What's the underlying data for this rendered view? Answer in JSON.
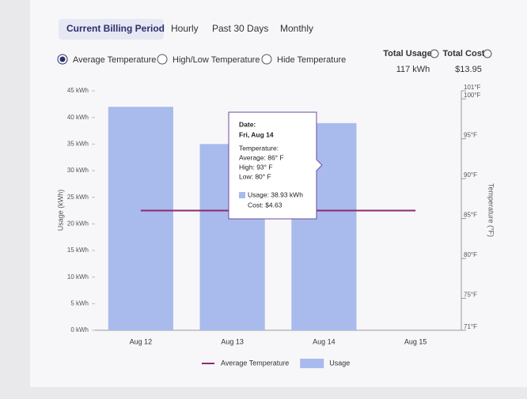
{
  "tabs": [
    "Current Billing Period",
    "Hourly",
    "Past 30 Days",
    "Monthly"
  ],
  "temperature_options": [
    "Average Temperature",
    "High/Low Temperature",
    "Hide Temperature"
  ],
  "totals": {
    "usage_label": "Total Usage",
    "usage_value": "117 kWh",
    "cost_label": "Total Cost",
    "cost_value": "$13.95"
  },
  "tooltip": {
    "date_label": "Date:",
    "date": "Fri, Aug 14",
    "temperature_label": "Temperature:",
    "average": "Average: 86° F",
    "high": "High: 93° F",
    "low": "Low: 80° F",
    "usage": "Usage: 38.93 kWh",
    "cost": "Cost: $4.63"
  },
  "chart_data": {
    "type": "bar",
    "categories": [
      "Aug 12",
      "Aug 13",
      "Aug 14",
      "Aug 15"
    ],
    "series": [
      {
        "name": "Usage",
        "type": "bar",
        "color": "#a9bbec",
        "values": [
          42,
          35,
          38.93,
          null
        ]
      },
      {
        "name": "Average Temperature",
        "type": "line",
        "axis": "y2",
        "color": "#8e2a6e",
        "values": [
          86,
          86,
          86,
          86
        ]
      }
    ],
    "y_label": "Usage (kWh)",
    "y2_label": "Temperature (°F)",
    "ylim": [
      0,
      45
    ],
    "yticks": [
      {
        "value": 0,
        "label": "0 kWh"
      },
      {
        "value": 5,
        "label": "5 kWh"
      },
      {
        "value": 10,
        "label": "10 kWh"
      },
      {
        "value": 15,
        "label": "15 kWh"
      },
      {
        "value": 20,
        "label": "20 kWh"
      },
      {
        "value": 25,
        "label": "25 kWh"
      },
      {
        "value": 30,
        "label": "30 kWh"
      },
      {
        "value": 35,
        "label": "35 kWh"
      },
      {
        "value": 40,
        "label": "40 kWh"
      },
      {
        "value": 45,
        "label": "45 kWh"
      }
    ],
    "y2lim": [
      71,
      101
    ],
    "y2ticks": [
      {
        "value": 71,
        "label": "71°F"
      },
      {
        "value": 75,
        "label": "75°F"
      },
      {
        "value": 80,
        "label": "80°F"
      },
      {
        "value": 85,
        "label": "85°F"
      },
      {
        "value": 90,
        "label": "90°F"
      },
      {
        "value": 95,
        "label": "95°F"
      },
      {
        "value": 100,
        "label": "100°F"
      },
      {
        "value": 101,
        "label": "101°F"
      }
    ],
    "grid": false,
    "legend": "bottom"
  }
}
